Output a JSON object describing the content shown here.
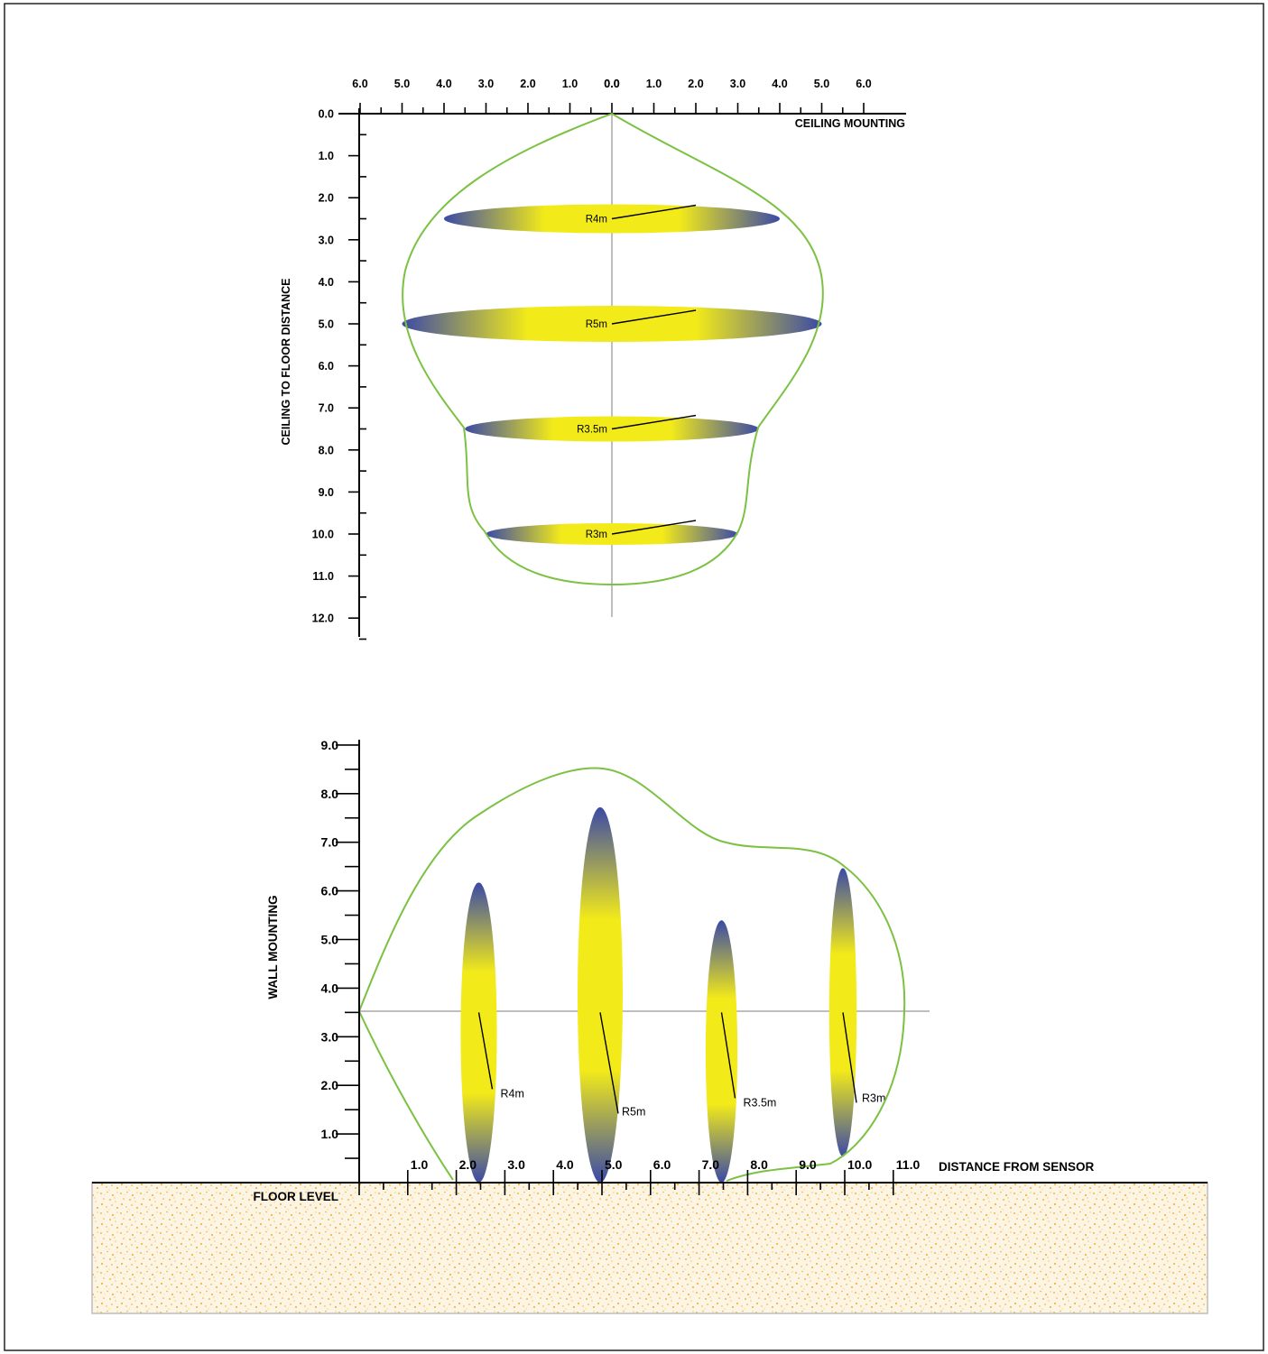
{
  "colors": {
    "envelope": "#7bc142",
    "ellipse_center": "#f3eb19",
    "ellipse_edge": "#3b4aa6",
    "floor_fill": "#fdf5e4",
    "floor_dots": "#f5b347",
    "centerline": "#a8a8a8"
  },
  "ceiling_diagram": {
    "title": "CEILING MOUNTING",
    "y_axis_label": "CEILING TO FLOOR DISTANCE",
    "x_tick_labels": [
      "6.0",
      "5.0",
      "4.0",
      "3.0",
      "2.0",
      "1.0",
      "0.0",
      "0.0",
      "1.0",
      "2.0",
      "3.0",
      "4.0",
      "5.0",
      "6.0"
    ],
    "y_tick_labels": [
      "0.0",
      "1.0",
      "2.0",
      "3.0",
      "4.0",
      "5.0",
      "6.0",
      "7.0",
      "8.0",
      "9.0",
      "10.0",
      "11.0",
      "12.0"
    ],
    "zones": [
      {
        "label": "R4m",
        "distance": 2.5,
        "radius": 4
      },
      {
        "label": "R5m",
        "distance": 5.0,
        "radius": 5
      },
      {
        "label": "R3.5m",
        "distance": 7.5,
        "radius": 3.5
      },
      {
        "label": "R3m",
        "distance": 10.0,
        "radius": 3
      }
    ]
  },
  "wall_diagram": {
    "y_axis_label": "WALL MOUNTING",
    "x_axis_label": "DISTANCE FROM SENSOR",
    "floor_label": "FLOOR LEVEL",
    "y_tick_labels": [
      "1.0",
      "2.0",
      "3.0",
      "4.0",
      "5.0",
      "6.0",
      "7.0",
      "8.0",
      "9.0"
    ],
    "x_tick_labels": [
      "1.0",
      "2.0",
      "3.0",
      "4.0",
      "5.0",
      "6.0",
      "7.0",
      "8.0",
      "9.0",
      "10.0",
      "11.0"
    ],
    "sensor_height": 3.5,
    "zones": [
      {
        "label": "R4m",
        "distance": 2.5,
        "radius": 4
      },
      {
        "label": "R5m",
        "distance": 5.0,
        "radius": 5
      },
      {
        "label": "R3.5m",
        "distance": 7.5,
        "radius": 3.5
      },
      {
        "label": "R3m",
        "distance": 10.0,
        "radius": 3
      }
    ]
  }
}
